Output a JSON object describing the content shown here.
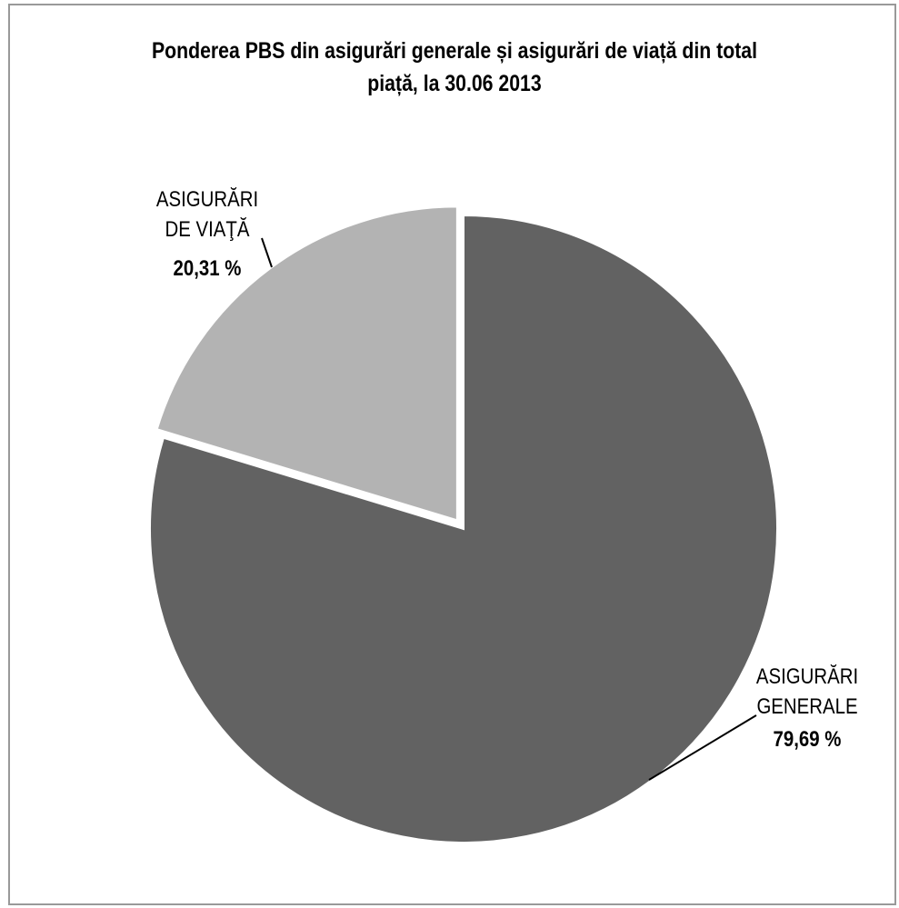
{
  "chart_data": {
    "type": "pie",
    "title": "Ponderea PBS din asigurări generale și asigurări de viață  din total piață, la 30.06 2013",
    "categories": [
      "ASIGURĂRI GENERALE",
      "ASIGURĂRI DE VIAŢĂ"
    ],
    "values": [
      79.69,
      20.31
    ],
    "value_labels": [
      "79,69 %",
      "20,31 %"
    ],
    "colors": [
      "#626262",
      "#b3b3b3"
    ],
    "explode": [
      false,
      true
    ]
  }
}
